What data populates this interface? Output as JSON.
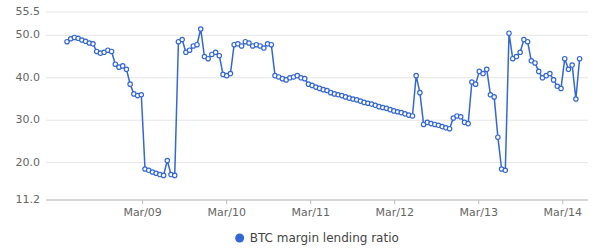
{
  "chart_data": {
    "type": "line",
    "x": [
      0.1,
      0.1442,
      0.1884,
      0.2326,
      0.2768,
      0.321,
      0.3652,
      0.4094,
      0.4536,
      0.4978,
      0.542,
      0.5862,
      0.6304,
      0.6746,
      0.7188,
      0.763,
      0.8072,
      0.8514,
      0.8957,
      0.9399,
      0.9841,
      1.0283,
      1.0725,
      1.1167,
      1.1609,
      1.2051,
      1.2493,
      1.2935,
      1.3377,
      1.3819,
      1.4261,
      1.4703,
      1.5145,
      1.5587,
      1.6029,
      1.6471,
      1.6913,
      1.7355,
      1.7797,
      1.8239,
      1.8681,
      1.9123,
      1.9565,
      2.0007,
      2.0449,
      2.0891,
      2.1333,
      2.1775,
      2.2217,
      2.2659,
      2.3101,
      2.3543,
      2.3986,
      2.4428,
      2.487,
      2.5312,
      2.5754,
      2.6196,
      2.6638,
      2.708,
      2.7522,
      2.7964,
      2.8406,
      2.8848,
      2.929,
      2.9732,
      3.0174,
      3.0616,
      3.1058,
      3.15,
      3.1942,
      3.2384,
      3.2826,
      3.3268,
      3.371,
      3.4152,
      3.4594,
      3.5036,
      3.5478,
      3.592,
      3.6362,
      3.6804,
      3.7246,
      3.7688,
      3.813,
      3.8572,
      3.9014,
      3.9457,
      3.9899,
      4.0341,
      4.0783,
      4.1225,
      4.1667,
      4.2109,
      4.2551,
      4.2993,
      4.3435,
      4.3877,
      4.4319,
      4.4761,
      4.5203,
      4.5645,
      4.6087,
      4.6529,
      4.6971,
      4.7413,
      4.7855,
      4.8297,
      4.8739,
      4.9181,
      4.9623,
      5.0065,
      5.0507,
      5.0949,
      5.1391,
      5.1833,
      5.2275,
      5.2717,
      5.3159,
      5.3601,
      5.4043,
      5.4486,
      5.4928,
      5.537,
      5.5812,
      5.6254,
      5.6696,
      5.7138,
      5.758,
      5.8022,
      5.8464,
      5.8906,
      5.9348,
      5.979,
      6.0232,
      6.0674,
      6.1116,
      6.1558,
      6.2
    ],
    "series": [
      {
        "name": "BTC margin lending ratio",
        "color": "#3367d6",
        "marker": "circle",
        "values": [
          48.5,
          49.2,
          49.5,
          49.3,
          48.9,
          48.6,
          48.2,
          48.0,
          46.2,
          45.8,
          46.0,
          46.5,
          46.2,
          43.2,
          42.5,
          42.8,
          42.0,
          38.5,
          36.2,
          35.8,
          36.0,
          18.5,
          18.2,
          17.8,
          17.5,
          17.2,
          17.0,
          20.5,
          17.2,
          17.0,
          48.5,
          49.0,
          46.0,
          46.5,
          47.5,
          47.8,
          51.5,
          45.0,
          44.5,
          45.5,
          46.0,
          45.2,
          40.8,
          40.5,
          41.0,
          47.8,
          48.0,
          47.5,
          48.5,
          48.2,
          47.5,
          47.8,
          47.5,
          47.0,
          48.0,
          47.8,
          40.5,
          40.2,
          39.8,
          39.5,
          40.0,
          40.2,
          40.5,
          40.0,
          39.8,
          38.5,
          38.2,
          37.8,
          37.5,
          37.2,
          37.0,
          36.5,
          36.2,
          36.0,
          35.8,
          35.5,
          35.2,
          35.0,
          34.8,
          34.5,
          34.2,
          34.0,
          33.8,
          33.5,
          33.2,
          33.0,
          32.8,
          32.5,
          32.2,
          32.0,
          31.8,
          31.5,
          31.2,
          31.0,
          40.5,
          36.5,
          29.0,
          29.5,
          29.2,
          29.0,
          28.8,
          28.5,
          28.2,
          28.0,
          30.5,
          31.0,
          30.8,
          29.5,
          29.2,
          39.0,
          38.5,
          41.5,
          41.0,
          42.0,
          36.0,
          35.5,
          26.0,
          18.5,
          18.2,
          50.5,
          44.5,
          45.0,
          46.0,
          49.0,
          48.5,
          44.0,
          43.5,
          41.5,
          40.0,
          40.5,
          41.0,
          39.5,
          38.0,
          37.5,
          44.5,
          42.0,
          43.0,
          35.0,
          44.5
        ]
      }
    ],
    "xlim": [
      -0.15,
      6.3
    ],
    "xticks": [
      {
        "value": 1,
        "label": "Mar/09"
      },
      {
        "value": 2,
        "label": "Mar/10"
      },
      {
        "value": 3,
        "label": "Mar/11"
      },
      {
        "value": 4,
        "label": "Mar/12"
      },
      {
        "value": 5,
        "label": "Mar/13"
      },
      {
        "value": 6,
        "label": "Mar/14"
      }
    ],
    "ylim": [
      11.2,
      55.5
    ],
    "yticks": [
      11.2,
      {
        "value": 20.0,
        "label": "20.0"
      },
      {
        "value": 30.0,
        "label": "30.0"
      },
      {
        "value": 40.0,
        "label": "40.0"
      },
      {
        "value": 50.0,
        "label": "50.0"
      },
      55.5
    ],
    "grid": true,
    "legend": "bottom"
  }
}
